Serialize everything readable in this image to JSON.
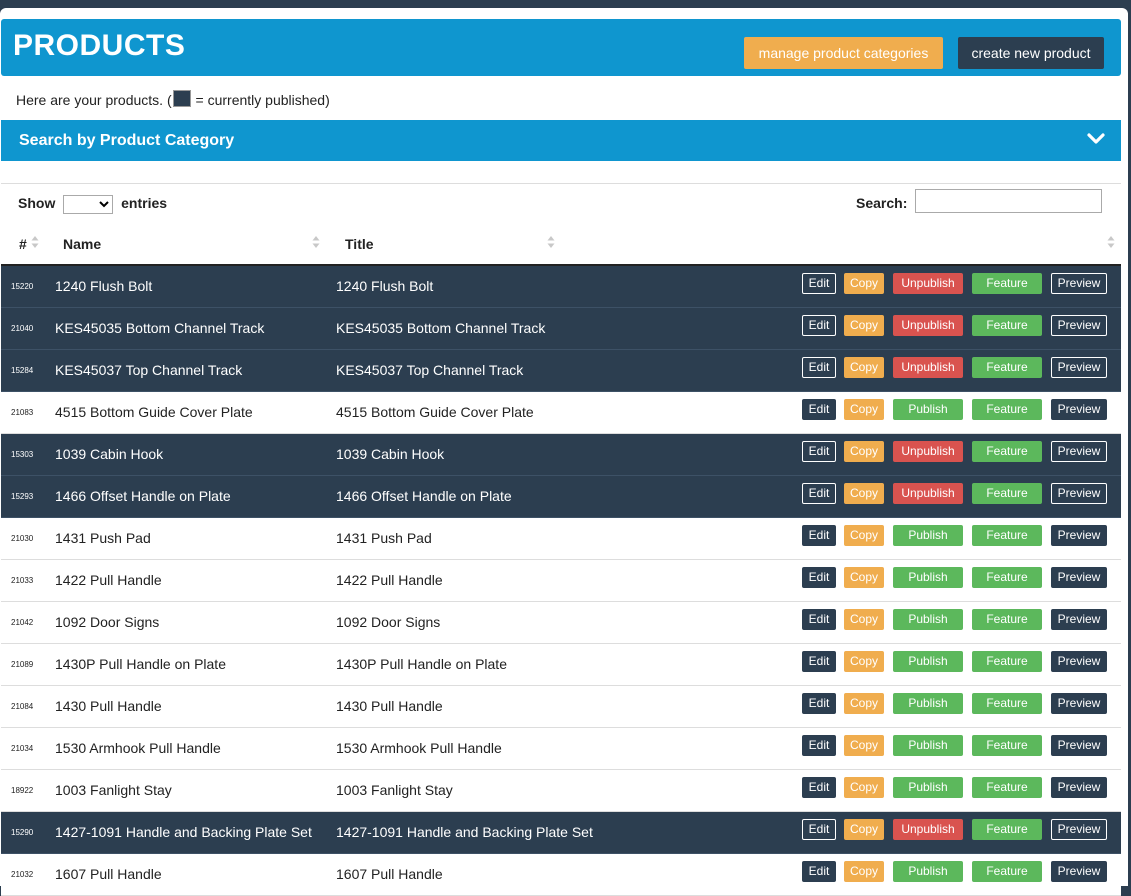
{
  "header": {
    "title": "PRODUCTS",
    "manage_label": "manage product categories",
    "create_label": "create new product"
  },
  "intro": {
    "before": "Here are your products. (",
    "after": " = currently published)"
  },
  "category_search": {
    "title": "Search by Product Category",
    "icon": "chevron-down-icon"
  },
  "table_controls": {
    "show_label": "Show",
    "entries_label": "entries",
    "entries_value": "",
    "search_label": "Search:",
    "search_value": ""
  },
  "columns": [
    "#",
    "Name",
    "Title"
  ],
  "buttons": {
    "edit": "Edit",
    "copy": "Copy",
    "publish": "Publish",
    "unpublish": "Unpublish",
    "feature": "Feature",
    "preview": "Preview"
  },
  "colors": {
    "header_blue": "#0f96cf",
    "published_row": "#2c3e50",
    "copy_orange": "#f0ad4e",
    "publish_green": "#5cb85c",
    "unpublish_red": "#d9534f"
  },
  "rows": [
    {
      "id": "15220",
      "name": "1240 Flush Bolt",
      "title": "1240 Flush Bolt",
      "published": true
    },
    {
      "id": "21040",
      "name": "KES45035 Bottom Channel Track",
      "title": "KES45035 Bottom Channel Track",
      "published": true
    },
    {
      "id": "15284",
      "name": "KES45037 Top Channel Track",
      "title": "KES45037 Top Channel Track",
      "published": true
    },
    {
      "id": "21083",
      "name": "4515 Bottom Guide Cover Plate",
      "title": "4515 Bottom Guide Cover Plate",
      "published": false
    },
    {
      "id": "15303",
      "name": "1039 Cabin Hook",
      "title": "1039 Cabin Hook",
      "published": true
    },
    {
      "id": "15293",
      "name": "1466 Offset Handle on Plate",
      "title": "1466 Offset Handle on Plate",
      "published": true
    },
    {
      "id": "21030",
      "name": "1431 Push Pad",
      "title": "1431 Push Pad",
      "published": false
    },
    {
      "id": "21033",
      "name": "1422 Pull Handle",
      "title": "1422 Pull Handle",
      "published": false
    },
    {
      "id": "21042",
      "name": "1092 Door Signs",
      "title": "1092 Door Signs",
      "published": false
    },
    {
      "id": "21089",
      "name": "1430P Pull Handle on Plate",
      "title": "1430P Pull Handle on Plate",
      "published": false
    },
    {
      "id": "21084",
      "name": "1430 Pull Handle",
      "title": "1430 Pull Handle",
      "published": false
    },
    {
      "id": "21034",
      "name": "1530 Armhook Pull Handle",
      "title": "1530 Armhook Pull Handle",
      "published": false
    },
    {
      "id": "18922",
      "name": "1003 Fanlight Stay",
      "title": "1003 Fanlight Stay",
      "published": false
    },
    {
      "id": "15290",
      "name": "1427-1091 Handle and Backing Plate Set",
      "title": "1427-1091 Handle and Backing Plate Set",
      "published": true
    },
    {
      "id": "21032",
      "name": "1607 Pull Handle",
      "title": "1607 Pull Handle",
      "published": false
    }
  ]
}
